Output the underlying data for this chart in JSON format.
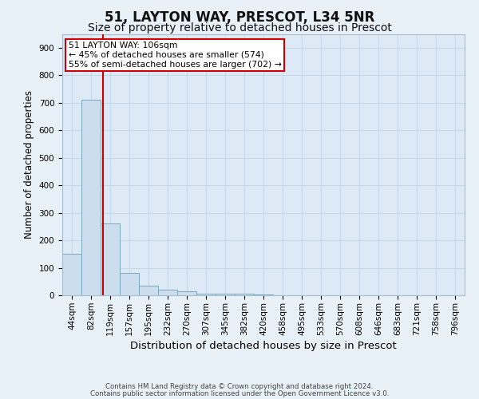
{
  "title1": "51, LAYTON WAY, PRESCOT, L34 5NR",
  "title2": "Size of property relative to detached houses in Prescot",
  "xlabel": "Distribution of detached houses by size in Prescot",
  "ylabel": "Number of detached properties",
  "footer1": "Contains HM Land Registry data © Crown copyright and database right 2024.",
  "footer2": "Contains public sector information licensed under the Open Government Licence v3.0.",
  "bin_labels": [
    "44sqm",
    "82sqm",
    "119sqm",
    "157sqm",
    "195sqm",
    "232sqm",
    "270sqm",
    "307sqm",
    "345sqm",
    "382sqm",
    "420sqm",
    "458sqm",
    "495sqm",
    "533sqm",
    "570sqm",
    "608sqm",
    "646sqm",
    "683sqm",
    "721sqm",
    "758sqm",
    "796sqm"
  ],
  "bar_values": [
    150,
    710,
    260,
    80,
    35,
    20,
    15,
    5,
    5,
    5,
    2,
    1,
    0,
    0,
    0,
    0,
    0,
    0,
    0,
    0,
    0
  ],
  "bar_color": "#ccdded",
  "bar_edge_color": "#7aaabf",
  "bar_edge_width": 0.7,
  "red_line_x": 1.62,
  "red_line_color": "#cc0000",
  "ylim": [
    0,
    950
  ],
  "yticks": [
    0,
    100,
    200,
    300,
    400,
    500,
    600,
    700,
    800,
    900
  ],
  "grid_color": "#c5d8ea",
  "background_color": "#ddeaf6",
  "fig_background_color": "#e8f0f8",
  "annotation_text": "51 LAYTON WAY: 106sqm\n← 45% of detached houses are smaller (574)\n55% of semi-detached houses are larger (702) →",
  "annotation_box_color": "#ffffff",
  "annotation_box_edge": "#cc0000",
  "annotation_fontsize": 7.8,
  "title1_fontsize": 12,
  "title2_fontsize": 10,
  "xlabel_fontsize": 9.5,
  "ylabel_fontsize": 8.5,
  "tick_fontsize": 7.5,
  "footer_fontsize": 6.2
}
